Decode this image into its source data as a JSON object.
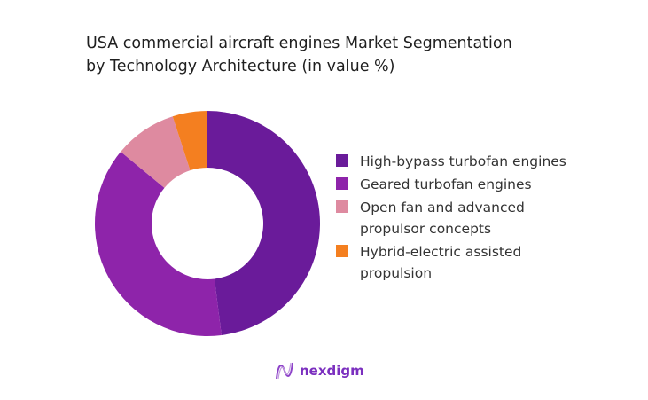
{
  "chart_data": {
    "type": "pie",
    "variant": "donut",
    "title": "USA commercial aircraft engines Market Segmentation by Technology Architecture (in value %)",
    "title_lines": [
      "USA commercial aircraft engines Market Segmentation",
      "by Technology Architecture (in value %)"
    ],
    "categories": [
      "High-bypass turbofan engines",
      "Geared turbofan engines",
      "Open fan and advanced propulsor concepts",
      "Hybrid-electric assisted propulsion"
    ],
    "values": [
      48,
      38,
      9,
      5
    ],
    "colors": [
      "#6a1b9a",
      "#8e24aa",
      "#de8aa0",
      "#f47f20"
    ],
    "legend_position": "right"
  },
  "brand": {
    "name": "nexdigm",
    "color": "#7b2fbf"
  }
}
